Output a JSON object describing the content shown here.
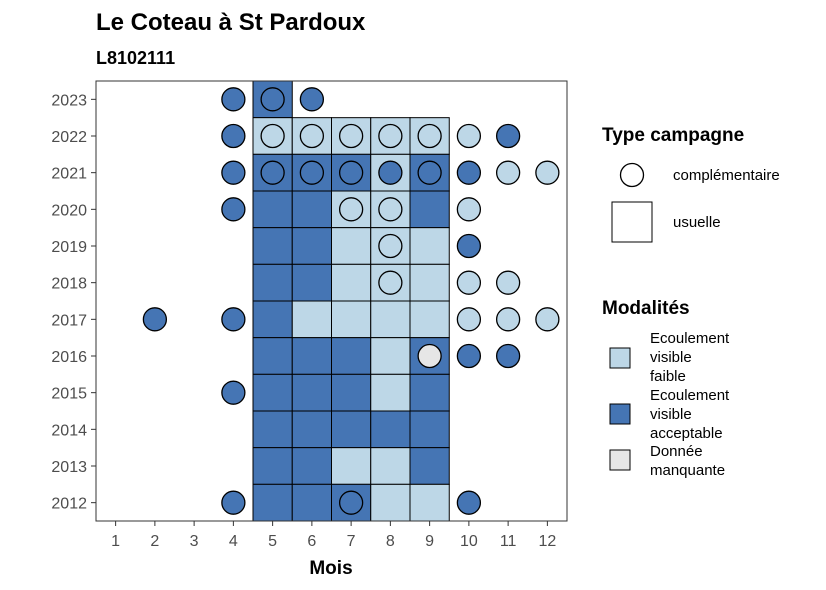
{
  "chart_data": {
    "type": "heatmap",
    "title": "Le Coteau à St Pardoux",
    "subtitle": "L8102111",
    "xlabel": "Mois",
    "ylabel": "",
    "x_ticks": [
      "1",
      "2",
      "3",
      "4",
      "5",
      "6",
      "7",
      "8",
      "9",
      "10",
      "11",
      "12"
    ],
    "y_ticks": [
      "2012",
      "2013",
      "2014",
      "2015",
      "2016",
      "2017",
      "2018",
      "2019",
      "2020",
      "2021",
      "2022",
      "2023"
    ],
    "xlim": [
      0.5,
      12.5
    ],
    "ylim": [
      2011.5,
      2023.5
    ],
    "colors": {
      "faible": "#bdd7e7",
      "acceptable": "#4575b4",
      "manquante": "#e6e6e6"
    },
    "legend_type": {
      "title": "Type campagne",
      "items": [
        {
          "label": "complémentaire",
          "shape": "circle"
        },
        {
          "label": "usuelle",
          "shape": "square"
        }
      ]
    },
    "legend_mod": {
      "title": "Modalités",
      "items": [
        {
          "key": "faible",
          "lines": [
            "Ecoulement",
            "visible",
            "faible"
          ]
        },
        {
          "key": "acceptable",
          "lines": [
            "Ecoulement",
            "visible",
            "acceptable"
          ]
        },
        {
          "key": "manquante",
          "lines": [
            "Donnée",
            "manquante"
          ]
        }
      ]
    },
    "usuelle": [
      {
        "year": 2023,
        "month": 5,
        "value": "acceptable"
      },
      {
        "year": 2022,
        "month": 5,
        "value": "faible"
      },
      {
        "year": 2022,
        "month": 6,
        "value": "faible"
      },
      {
        "year": 2022,
        "month": 7,
        "value": "faible"
      },
      {
        "year": 2022,
        "month": 8,
        "value": "faible"
      },
      {
        "year": 2022,
        "month": 9,
        "value": "faible"
      },
      {
        "year": 2021,
        "month": 5,
        "value": "acceptable"
      },
      {
        "year": 2021,
        "month": 6,
        "value": "acceptable"
      },
      {
        "year": 2021,
        "month": 7,
        "value": "acceptable"
      },
      {
        "year": 2021,
        "month": 8,
        "value": "faible"
      },
      {
        "year": 2021,
        "month": 9,
        "value": "acceptable"
      },
      {
        "year": 2020,
        "month": 5,
        "value": "acceptable"
      },
      {
        "year": 2020,
        "month": 6,
        "value": "acceptable"
      },
      {
        "year": 2020,
        "month": 7,
        "value": "faible"
      },
      {
        "year": 2020,
        "month": 8,
        "value": "faible"
      },
      {
        "year": 2020,
        "month": 9,
        "value": "acceptable"
      },
      {
        "year": 2019,
        "month": 5,
        "value": "acceptable"
      },
      {
        "year": 2019,
        "month": 6,
        "value": "acceptable"
      },
      {
        "year": 2019,
        "month": 7,
        "value": "faible"
      },
      {
        "year": 2019,
        "month": 8,
        "value": "faible"
      },
      {
        "year": 2019,
        "month": 9,
        "value": "faible"
      },
      {
        "year": 2018,
        "month": 5,
        "value": "acceptable"
      },
      {
        "year": 2018,
        "month": 6,
        "value": "acceptable"
      },
      {
        "year": 2018,
        "month": 7,
        "value": "faible"
      },
      {
        "year": 2018,
        "month": 8,
        "value": "faible"
      },
      {
        "year": 2018,
        "month": 9,
        "value": "faible"
      },
      {
        "year": 2017,
        "month": 5,
        "value": "acceptable"
      },
      {
        "year": 2017,
        "month": 6,
        "value": "faible"
      },
      {
        "year": 2017,
        "month": 7,
        "value": "faible"
      },
      {
        "year": 2017,
        "month": 8,
        "value": "faible"
      },
      {
        "year": 2017,
        "month": 9,
        "value": "faible"
      },
      {
        "year": 2016,
        "month": 5,
        "value": "acceptable"
      },
      {
        "year": 2016,
        "month": 6,
        "value": "acceptable"
      },
      {
        "year": 2016,
        "month": 7,
        "value": "acceptable"
      },
      {
        "year": 2016,
        "month": 8,
        "value": "faible"
      },
      {
        "year": 2016,
        "month": 9,
        "value": "acceptable"
      },
      {
        "year": 2015,
        "month": 5,
        "value": "acceptable"
      },
      {
        "year": 2015,
        "month": 6,
        "value": "acceptable"
      },
      {
        "year": 2015,
        "month": 7,
        "value": "acceptable"
      },
      {
        "year": 2015,
        "month": 8,
        "value": "faible"
      },
      {
        "year": 2015,
        "month": 9,
        "value": "acceptable"
      },
      {
        "year": 2014,
        "month": 5,
        "value": "acceptable"
      },
      {
        "year": 2014,
        "month": 6,
        "value": "acceptable"
      },
      {
        "year": 2014,
        "month": 7,
        "value": "acceptable"
      },
      {
        "year": 2014,
        "month": 8,
        "value": "acceptable"
      },
      {
        "year": 2014,
        "month": 9,
        "value": "acceptable"
      },
      {
        "year": 2013,
        "month": 5,
        "value": "acceptable"
      },
      {
        "year": 2013,
        "month": 6,
        "value": "acceptable"
      },
      {
        "year": 2013,
        "month": 7,
        "value": "faible"
      },
      {
        "year": 2013,
        "month": 8,
        "value": "faible"
      },
      {
        "year": 2013,
        "month": 9,
        "value": "acceptable"
      },
      {
        "year": 2012,
        "month": 5,
        "value": "acceptable"
      },
      {
        "year": 2012,
        "month": 6,
        "value": "acceptable"
      },
      {
        "year": 2012,
        "month": 7,
        "value": "acceptable"
      },
      {
        "year": 2012,
        "month": 8,
        "value": "faible"
      },
      {
        "year": 2012,
        "month": 9,
        "value": "faible"
      }
    ],
    "complementaire": [
      {
        "year": 2023,
        "month": 4,
        "value": "acceptable"
      },
      {
        "year": 2023,
        "month": 5,
        "value": "acceptable"
      },
      {
        "year": 2023,
        "month": 6,
        "value": "acceptable"
      },
      {
        "year": 2022,
        "month": 4,
        "value": "acceptable"
      },
      {
        "year": 2022,
        "month": 5,
        "value": "faible"
      },
      {
        "year": 2022,
        "month": 6,
        "value": "faible"
      },
      {
        "year": 2022,
        "month": 7,
        "value": "faible"
      },
      {
        "year": 2022,
        "month": 8,
        "value": "faible"
      },
      {
        "year": 2022,
        "month": 9,
        "value": "faible"
      },
      {
        "year": 2022,
        "month": 10,
        "value": "faible"
      },
      {
        "year": 2022,
        "month": 11,
        "value": "acceptable"
      },
      {
        "year": 2021,
        "month": 4,
        "value": "acceptable"
      },
      {
        "year": 2021,
        "month": 5,
        "value": "acceptable"
      },
      {
        "year": 2021,
        "month": 6,
        "value": "acceptable"
      },
      {
        "year": 2021,
        "month": 7,
        "value": "acceptable"
      },
      {
        "year": 2021,
        "month": 8,
        "value": "acceptable"
      },
      {
        "year": 2021,
        "month": 9,
        "value": "acceptable"
      },
      {
        "year": 2021,
        "month": 10,
        "value": "acceptable"
      },
      {
        "year": 2021,
        "month": 11,
        "value": "faible"
      },
      {
        "year": 2021,
        "month": 12,
        "value": "faible"
      },
      {
        "year": 2020,
        "month": 4,
        "value": "acceptable"
      },
      {
        "year": 2020,
        "month": 7,
        "value": "faible"
      },
      {
        "year": 2020,
        "month": 8,
        "value": "faible"
      },
      {
        "year": 2020,
        "month": 10,
        "value": "faible"
      },
      {
        "year": 2019,
        "month": 8,
        "value": "faible"
      },
      {
        "year": 2019,
        "month": 10,
        "value": "acceptable"
      },
      {
        "year": 2018,
        "month": 8,
        "value": "faible"
      },
      {
        "year": 2018,
        "month": 10,
        "value": "faible"
      },
      {
        "year": 2018,
        "month": 11,
        "value": "faible"
      },
      {
        "year": 2017,
        "month": 2,
        "value": "acceptable"
      },
      {
        "year": 2017,
        "month": 4,
        "value": "acceptable"
      },
      {
        "year": 2017,
        "month": 10,
        "value": "faible"
      },
      {
        "year": 2017,
        "month": 11,
        "value": "faible"
      },
      {
        "year": 2017,
        "month": 12,
        "value": "faible"
      },
      {
        "year": 2016,
        "month": 9,
        "value": "manquante"
      },
      {
        "year": 2016,
        "month": 10,
        "value": "acceptable"
      },
      {
        "year": 2016,
        "month": 11,
        "value": "acceptable"
      },
      {
        "year": 2015,
        "month": 4,
        "value": "acceptable"
      },
      {
        "year": 2012,
        "month": 4,
        "value": "acceptable"
      },
      {
        "year": 2012,
        "month": 7,
        "value": "acceptable"
      },
      {
        "year": 2012,
        "month": 10,
        "value": "acceptable"
      }
    ]
  }
}
